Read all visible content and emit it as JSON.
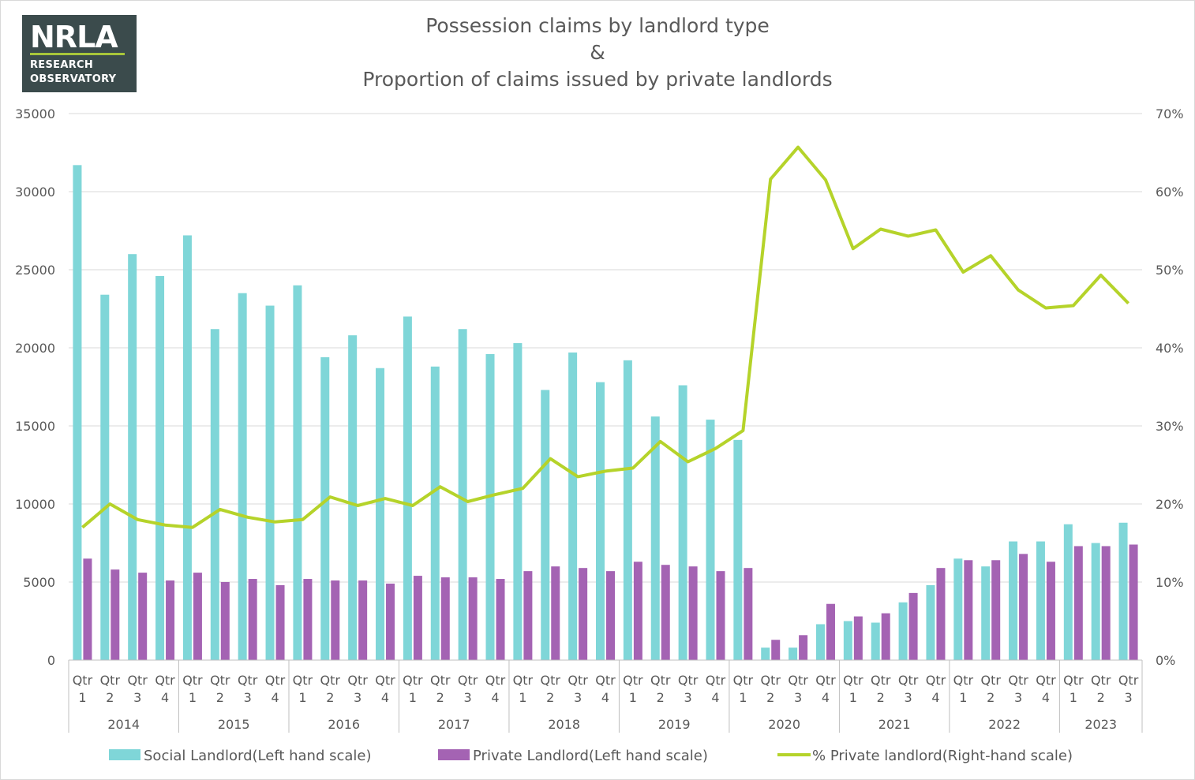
{
  "logo": {
    "mark": "NRLA",
    "line1": "RESEARCH",
    "line2": "OBSERVATORY"
  },
  "chart_data": {
    "type": "bar",
    "title": [
      "Possession claims by landlord type",
      "&",
      "Proportion of claims issued by private landlords"
    ],
    "quarter_labels": [
      "Qtr 1",
      "Qtr 2",
      "Qtr 3",
      "Qtr 4"
    ],
    "years": [
      "2014",
      "2015",
      "2016",
      "2017",
      "2018",
      "2019",
      "2020",
      "2021",
      "2022",
      "2023"
    ],
    "quarters_per_year": [
      4,
      4,
      4,
      4,
      4,
      4,
      4,
      4,
      4,
      3
    ],
    "y_left": {
      "min": 0,
      "max": 35000,
      "ticks": [
        0,
        5000,
        10000,
        15000,
        20000,
        25000,
        30000,
        35000
      ]
    },
    "y_right": {
      "min": 0,
      "max": 70,
      "ticks": [
        "0%",
        "10%",
        "20%",
        "30%",
        "40%",
        "50%",
        "60%",
        "70%"
      ]
    },
    "grid": true,
    "legend_position": "bottom",
    "series": [
      {
        "name": "Social Landlord(Left hand scale)",
        "type": "bar",
        "color": "#7fd6d8",
        "values": [
          31700,
          23400,
          26000,
          24600,
          27200,
          21200,
          23500,
          22700,
          24000,
          19400,
          20800,
          18700,
          22000,
          18800,
          21200,
          19600,
          20300,
          17300,
          19700,
          17800,
          19200,
          15600,
          17600,
          15400,
          14100,
          800,
          800,
          2300,
          2500,
          2400,
          3700,
          4800,
          6500,
          6000,
          7600,
          7600,
          8700,
          7500,
          8800
        ]
      },
      {
        "name": "Private Landlord(Left hand scale)",
        "type": "bar",
        "color": "#a463b3",
        "values": [
          6500,
          5800,
          5600,
          5100,
          5600,
          5000,
          5200,
          4800,
          5200,
          5100,
          5100,
          4900,
          5400,
          5300,
          5300,
          5200,
          5700,
          6000,
          5900,
          5700,
          6300,
          6100,
          6000,
          5700,
          5900,
          1300,
          1600,
          3600,
          2800,
          3000,
          4300,
          5900,
          6400,
          6400,
          6800,
          6300,
          7300,
          7300,
          7400
        ]
      },
      {
        "name": "% Private landlord(Right-hand scale)",
        "type": "line",
        "color": "#b5d32a",
        "values": [
          17.0,
          20.0,
          18.0,
          17.3,
          17.0,
          19.3,
          18.3,
          17.7,
          18.0,
          20.9,
          19.8,
          20.7,
          19.8,
          22.2,
          20.3,
          21.2,
          22.0,
          25.8,
          23.5,
          24.2,
          24.6,
          28.0,
          25.4,
          27.1,
          29.4,
          61.6,
          65.7,
          61.5,
          52.7,
          55.2,
          54.3,
          55.1,
          49.7,
          51.8,
          47.4,
          45.1,
          45.4,
          49.3,
          45.7
        ]
      }
    ]
  }
}
